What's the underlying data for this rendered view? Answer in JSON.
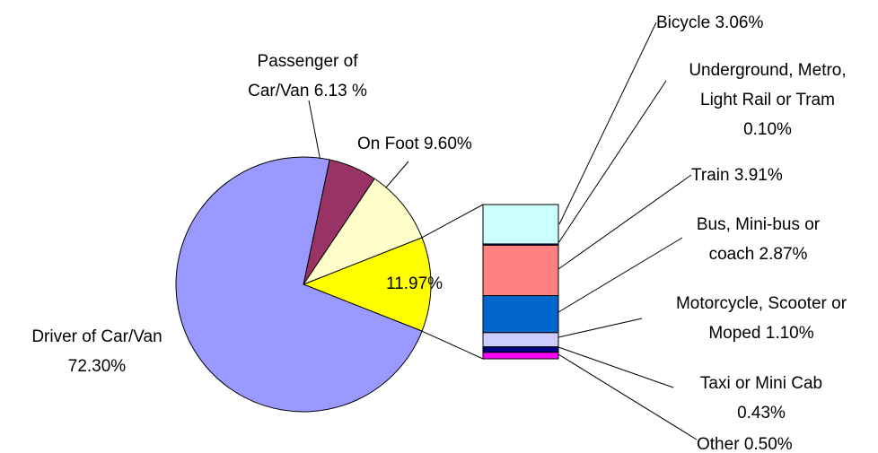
{
  "chart_data": {
    "type": "pie",
    "pie": {
      "categories": [
        "Driver of Car/Van",
        "Passenger of Car/Van",
        "On Foot",
        null
      ],
      "values": [
        72.3,
        6.13,
        9.6,
        11.97
      ],
      "value_labels": [
        "72.30%",
        "6.13 %",
        "9.60%",
        "11.97%"
      ],
      "colors": [
        "#9999ff",
        "#993366",
        "#ffffcc",
        "#ffff00"
      ]
    },
    "bar": {
      "categories": [
        "Bicycle",
        "Underground, Metro, Light Rail or Tram",
        "Train",
        "Bus, Mini-bus or coach",
        "Motorcycle, Scooter or Moped",
        "Taxi or Mini Cab",
        "Other"
      ],
      "values": [
        3.06,
        0.1,
        3.91,
        2.87,
        1.1,
        0.43,
        0.5
      ],
      "value_labels": [
        "3.06%",
        "0.10%",
        "3.91%",
        "2.87%",
        "1.10%",
        "0.43%",
        "0.50%"
      ],
      "colors": [
        "#ccffff",
        "#000080",
        "#ff8080",
        "#0066cc",
        "#ccccff",
        "#000080",
        "#ff00ff"
      ]
    }
  }
}
